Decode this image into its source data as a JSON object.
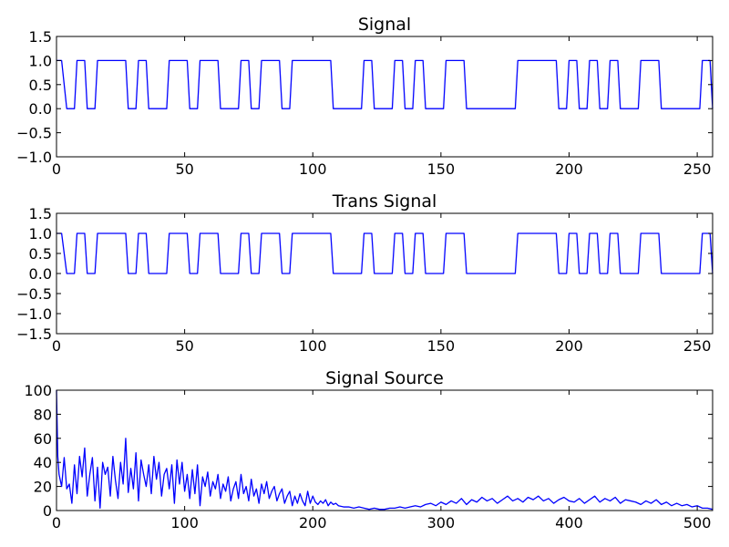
{
  "chart_data": [
    {
      "type": "line",
      "title": "Signal",
      "xlim": [
        0,
        256
      ],
      "ylim": [
        -1.0,
        1.5
      ],
      "xticks": [
        0,
        50,
        100,
        150,
        200,
        250
      ],
      "yticks": [
        -1.0,
        -0.5,
        0.0,
        0.5,
        1.0,
        1.5
      ],
      "xtick_labels": [
        "0",
        "50",
        "100",
        "150",
        "200",
        "250"
      ],
      "ytick_labels": [
        "−1.0",
        "−0.5",
        "0.0",
        "0.5",
        "1.0",
        "1.5"
      ],
      "line_color": "#0000ff",
      "series": [
        {
          "x": [
            0,
            2,
            4,
            7,
            8,
            11,
            12,
            15,
            16,
            27,
            28,
            31,
            32,
            35,
            36,
            43,
            44,
            51,
            52,
            55,
            56,
            63,
            64,
            71,
            72,
            75,
            76,
            79,
            80,
            87,
            88,
            91,
            92,
            107,
            108,
            119,
            120,
            123,
            124,
            131,
            132,
            135,
            136,
            139,
            140,
            143,
            144,
            151,
            152,
            159,
            160,
            179,
            180,
            195,
            196,
            199,
            200,
            203,
            204,
            207,
            208,
            211,
            212,
            215,
            216,
            219,
            220,
            227,
            228,
            235,
            236,
            251,
            252,
            255,
            256
          ],
          "y": [
            1,
            1,
            0,
            0,
            1,
            1,
            0,
            0,
            1,
            1,
            0,
            0,
            1,
            1,
            0,
            0,
            1,
            1,
            0,
            0,
            1,
            1,
            0,
            0,
            1,
            1,
            0,
            0,
            1,
            1,
            0,
            0,
            1,
            1,
            0,
            0,
            1,
            1,
            0,
            0,
            1,
            1,
            0,
            0,
            1,
            1,
            0,
            0,
            1,
            1,
            0,
            0,
            1,
            1,
            0,
            0,
            1,
            1,
            0,
            0,
            1,
            1,
            0,
            0,
            1,
            1,
            0,
            0,
            1,
            1,
            0,
            0,
            1,
            1,
            0
          ]
        }
      ]
    },
    {
      "type": "line",
      "title": "Trans Signal",
      "xlim": [
        0,
        256
      ],
      "ylim": [
        -1.5,
        1.5
      ],
      "xticks": [
        0,
        50,
        100,
        150,
        200,
        250
      ],
      "yticks": [
        -1.5,
        -1.0,
        -0.5,
        0.0,
        0.5,
        1.0,
        1.5
      ],
      "xtick_labels": [
        "0",
        "50",
        "100",
        "150",
        "200",
        "250"
      ],
      "ytick_labels": [
        "−1.5",
        "−1.0",
        "−0.5",
        "0.0",
        "0.5",
        "1.0",
        "1.5"
      ],
      "line_color": "#0000ff",
      "series": [
        {
          "x": [
            0,
            2,
            4,
            7,
            8,
            11,
            12,
            15,
            16,
            27,
            28,
            31,
            32,
            35,
            36,
            43,
            44,
            51,
            52,
            55,
            56,
            63,
            64,
            71,
            72,
            75,
            76,
            79,
            80,
            87,
            88,
            91,
            92,
            107,
            108,
            119,
            120,
            123,
            124,
            131,
            132,
            135,
            136,
            139,
            140,
            143,
            144,
            151,
            152,
            159,
            160,
            179,
            180,
            195,
            196,
            199,
            200,
            203,
            204,
            207,
            208,
            211,
            212,
            215,
            216,
            219,
            220,
            227,
            228,
            235,
            236,
            251,
            252,
            255,
            256
          ],
          "y": [
            1,
            1,
            0,
            0,
            1,
            1,
            0,
            0,
            1,
            1,
            0,
            0,
            1,
            1,
            0,
            0,
            1,
            1,
            0,
            0,
            1,
            1,
            0,
            0,
            1,
            1,
            0,
            0,
            1,
            1,
            0,
            0,
            1,
            1,
            0,
            0,
            1,
            1,
            0,
            0,
            1,
            1,
            0,
            0,
            1,
            1,
            0,
            0,
            1,
            1,
            0,
            0,
            1,
            1,
            0,
            0,
            1,
            1,
            0,
            0,
            1,
            1,
            0,
            0,
            1,
            1,
            0,
            0,
            1,
            1,
            0,
            0,
            1,
            1,
            0
          ]
        }
      ]
    },
    {
      "type": "line",
      "title": "Signal Source",
      "xlim": [
        0,
        512
      ],
      "ylim": [
        0,
        100
      ],
      "xticks": [
        0,
        100,
        200,
        300,
        400,
        500
      ],
      "yticks": [
        0,
        20,
        40,
        60,
        80,
        100
      ],
      "xtick_labels": [
        "0",
        "100",
        "200",
        "300",
        "400",
        "500"
      ],
      "ytick_labels": [
        "0",
        "20",
        "40",
        "60",
        "80",
        "100"
      ],
      "line_color": "#0000ff",
      "series": [
        {
          "x": [
            0,
            1,
            2,
            4,
            6,
            8,
            10,
            12,
            14,
            16,
            18,
            20,
            22,
            24,
            26,
            28,
            30,
            32,
            34,
            36,
            38,
            40,
            42,
            44,
            46,
            48,
            50,
            52,
            54,
            56,
            58,
            60,
            62,
            64,
            66,
            68,
            70,
            72,
            74,
            76,
            78,
            80,
            82,
            84,
            86,
            88,
            90,
            92,
            94,
            96,
            98,
            100,
            102,
            104,
            106,
            108,
            110,
            112,
            114,
            116,
            118,
            120,
            122,
            124,
            126,
            128,
            130,
            132,
            134,
            136,
            138,
            140,
            142,
            144,
            146,
            148,
            150,
            152,
            154,
            156,
            158,
            160,
            162,
            164,
            166,
            168,
            170,
            172,
            174,
            176,
            178,
            180,
            182,
            184,
            186,
            188,
            190,
            192,
            194,
            196,
            198,
            200,
            202,
            204,
            206,
            208,
            210,
            212,
            214,
            216,
            218,
            220,
            224,
            228,
            232,
            236,
            240,
            244,
            248,
            252,
            256,
            260,
            264,
            268,
            272,
            276,
            280,
            284,
            288,
            292,
            296,
            300,
            304,
            308,
            312,
            316,
            320,
            324,
            328,
            332,
            336,
            340,
            344,
            348,
            352,
            356,
            360,
            364,
            368,
            372,
            376,
            380,
            384,
            388,
            392,
            396,
            400,
            404,
            408,
            412,
            416,
            420,
            424,
            428,
            432,
            436,
            440,
            444,
            448,
            452,
            456,
            460,
            464,
            468,
            472,
            476,
            480,
            484,
            488,
            492,
            496,
            500,
            504,
            508,
            512
          ],
          "y": [
            100,
            45,
            30,
            20,
            44,
            18,
            22,
            6,
            38,
            14,
            45,
            28,
            52,
            12,
            30,
            44,
            8,
            36,
            2,
            40,
            30,
            36,
            12,
            45,
            25,
            10,
            40,
            22,
            60,
            15,
            35,
            18,
            48,
            8,
            42,
            30,
            20,
            38,
            14,
            45,
            26,
            40,
            12,
            30,
            35,
            18,
            38,
            6,
            42,
            22,
            40,
            16,
            30,
            10,
            34,
            14,
            38,
            4,
            28,
            20,
            32,
            12,
            24,
            18,
            30,
            10,
            22,
            16,
            28,
            8,
            18,
            24,
            10,
            30,
            14,
            20,
            8,
            26,
            12,
            18,
            6,
            22,
            14,
            24,
            10,
            16,
            20,
            8,
            14,
            18,
            6,
            12,
            16,
            4,
            12,
            6,
            14,
            8,
            4,
            16,
            6,
            12,
            7,
            5,
            8,
            6,
            9,
            4,
            7,
            5,
            6,
            4,
            3,
            3,
            2,
            3,
            2,
            1,
            2,
            1,
            1,
            2,
            2,
            3,
            2,
            3,
            4,
            3,
            5,
            6,
            4,
            7,
            5,
            8,
            6,
            10,
            5,
            9,
            7,
            11,
            8,
            10,
            6,
            9,
            12,
            8,
            10,
            7,
            11,
            9,
            12,
            8,
            10,
            6,
            9,
            11,
            8,
            7,
            10,
            6,
            9,
            12,
            7,
            10,
            8,
            11,
            6,
            9,
            8,
            7,
            5,
            8,
            6,
            9,
            5,
            7,
            4,
            6,
            4,
            5,
            3,
            4,
            2,
            2,
            1
          ]
        }
      ]
    }
  ]
}
